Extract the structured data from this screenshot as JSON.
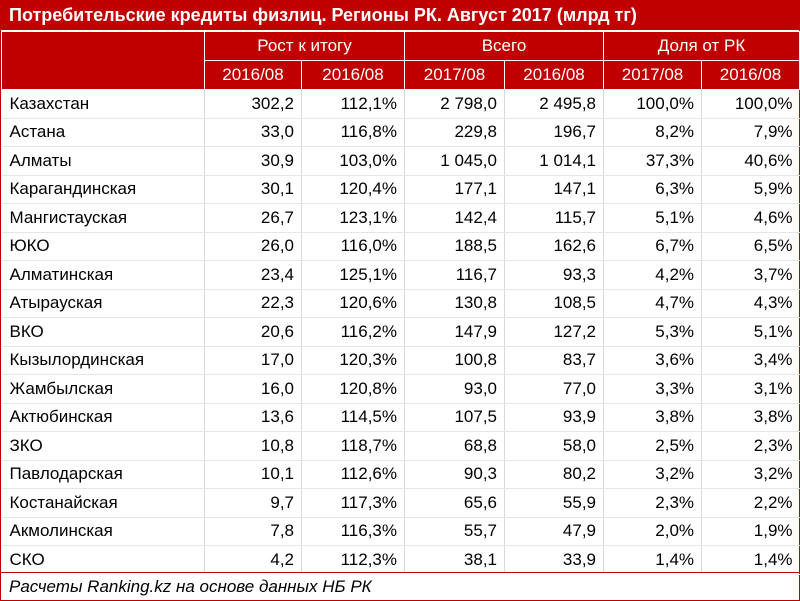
{
  "title": "Потребительские кредиты физлиц. Регионы РК. Август 2017 (млрд тг)",
  "groups": [
    {
      "label": "Рост к итогу"
    },
    {
      "label": "Всего"
    },
    {
      "label": "Доля от РК"
    }
  ],
  "subheaders": [
    "2016/08",
    "2016/08",
    "2017/08",
    "2016/08",
    "2017/08",
    "2016/08"
  ],
  "rows": [
    [
      "Казахстан",
      "302,2",
      "112,1%",
      "2 798,0",
      "2 495,8",
      "100,0%",
      "100,0%"
    ],
    [
      "Астана",
      "33,0",
      "116,8%",
      "229,8",
      "196,7",
      "8,2%",
      "7,9%"
    ],
    [
      "Алматы",
      "30,9",
      "103,0%",
      "1 045,0",
      "1 014,1",
      "37,3%",
      "40,6%"
    ],
    [
      "Карагандинская",
      "30,1",
      "120,4%",
      "177,1",
      "147,1",
      "6,3%",
      "5,9%"
    ],
    [
      "Мангистауская",
      "26,7",
      "123,1%",
      "142,4",
      "115,7",
      "5,1%",
      "4,6%"
    ],
    [
      "ЮКО",
      "26,0",
      "116,0%",
      "188,5",
      "162,6",
      "6,7%",
      "6,5%"
    ],
    [
      "Алматинская",
      "23,4",
      "125,1%",
      "116,7",
      "93,3",
      "4,2%",
      "3,7%"
    ],
    [
      "Атырауская",
      "22,3",
      "120,6%",
      "130,8",
      "108,5",
      "4,7%",
      "4,3%"
    ],
    [
      "ВКО",
      "20,6",
      "116,2%",
      "147,9",
      "127,2",
      "5,3%",
      "5,1%"
    ],
    [
      "Кызылординская",
      "17,0",
      "120,3%",
      "100,8",
      "83,7",
      "3,6%",
      "3,4%"
    ],
    [
      "Жамбылская",
      "16,0",
      "120,8%",
      "93,0",
      "77,0",
      "3,3%",
      "3,1%"
    ],
    [
      "Актюбинская",
      "13,6",
      "114,5%",
      "107,5",
      "93,9",
      "3,8%",
      "3,8%"
    ],
    [
      "ЗКО",
      "10,8",
      "118,7%",
      "68,8",
      "58,0",
      "2,5%",
      "2,3%"
    ],
    [
      "Павлодарская",
      "10,1",
      "112,6%",
      "90,3",
      "80,2",
      "3,2%",
      "3,2%"
    ],
    [
      "Костанайская",
      "9,7",
      "117,3%",
      "65,6",
      "55,9",
      "2,3%",
      "2,2%"
    ],
    [
      "Акмолинская",
      "7,8",
      "116,3%",
      "55,7",
      "47,9",
      "2,0%",
      "1,9%"
    ],
    [
      "СКО",
      "4,2",
      "112,3%",
      "38,1",
      "33,9",
      "1,4%",
      "1,4%"
    ]
  ],
  "footer": "Расчеты Ranking.kz на основе данных НБ РК",
  "colors": {
    "header_bg": "#c00000",
    "header_text": "#ffffff"
  },
  "chart_data": {
    "type": "table",
    "title": "Потребительские кредиты физлиц. Регионы РК. Август 2017 (млрд тг)",
    "columns": [
      "Рост к итогу 2016/08",
      "Рост к итогу 2016/08",
      "Всего 2017/08",
      "Всего 2016/08",
      "Доля от РК 2017/08",
      "Доля от РК 2016/08"
    ],
    "rows": [
      {
        "region": "Казахстан",
        "values": [
          302.2,
          112.1,
          2798.0,
          2495.8,
          100.0,
          100.0
        ]
      },
      {
        "region": "Астана",
        "values": [
          33.0,
          116.8,
          229.8,
          196.7,
          8.2,
          7.9
        ]
      },
      {
        "region": "Алматы",
        "values": [
          30.9,
          103.0,
          1045.0,
          1014.1,
          37.3,
          40.6
        ]
      },
      {
        "region": "Карагандинская",
        "values": [
          30.1,
          120.4,
          177.1,
          147.1,
          6.3,
          5.9
        ]
      },
      {
        "region": "Мангистауская",
        "values": [
          26.7,
          123.1,
          142.4,
          115.7,
          5.1,
          4.6
        ]
      },
      {
        "region": "ЮКО",
        "values": [
          26.0,
          116.0,
          188.5,
          162.6,
          6.7,
          6.5
        ]
      },
      {
        "region": "Алматинская",
        "values": [
          23.4,
          125.1,
          116.7,
          93.3,
          4.2,
          3.7
        ]
      },
      {
        "region": "Атырауская",
        "values": [
          22.3,
          120.6,
          130.8,
          108.5,
          4.7,
          4.3
        ]
      },
      {
        "region": "ВКО",
        "values": [
          20.6,
          116.2,
          147.9,
          127.2,
          5.3,
          5.1
        ]
      },
      {
        "region": "Кызылординская",
        "values": [
          17.0,
          120.3,
          100.8,
          83.7,
          3.6,
          3.4
        ]
      },
      {
        "region": "Жамбылская",
        "values": [
          16.0,
          120.8,
          93.0,
          77.0,
          3.3,
          3.1
        ]
      },
      {
        "region": "Актюбинская",
        "values": [
          13.6,
          114.5,
          107.5,
          93.9,
          3.8,
          3.8
        ]
      },
      {
        "region": "ЗКО",
        "values": [
          10.8,
          118.7,
          68.8,
          58.0,
          2.5,
          2.3
        ]
      },
      {
        "region": "Павлодарская",
        "values": [
          10.1,
          112.6,
          90.3,
          80.2,
          3.2,
          3.2
        ]
      },
      {
        "region": "Костанайская",
        "values": [
          9.7,
          117.3,
          65.6,
          55.9,
          2.3,
          2.2
        ]
      },
      {
        "region": "Акмолинская",
        "values": [
          7.8,
          116.3,
          55.7,
          47.9,
          2.0,
          1.9
        ]
      },
      {
        "region": "СКО",
        "values": [
          4.2,
          112.3,
          38.1,
          33.9,
          1.4,
          1.4
        ]
      }
    ]
  }
}
